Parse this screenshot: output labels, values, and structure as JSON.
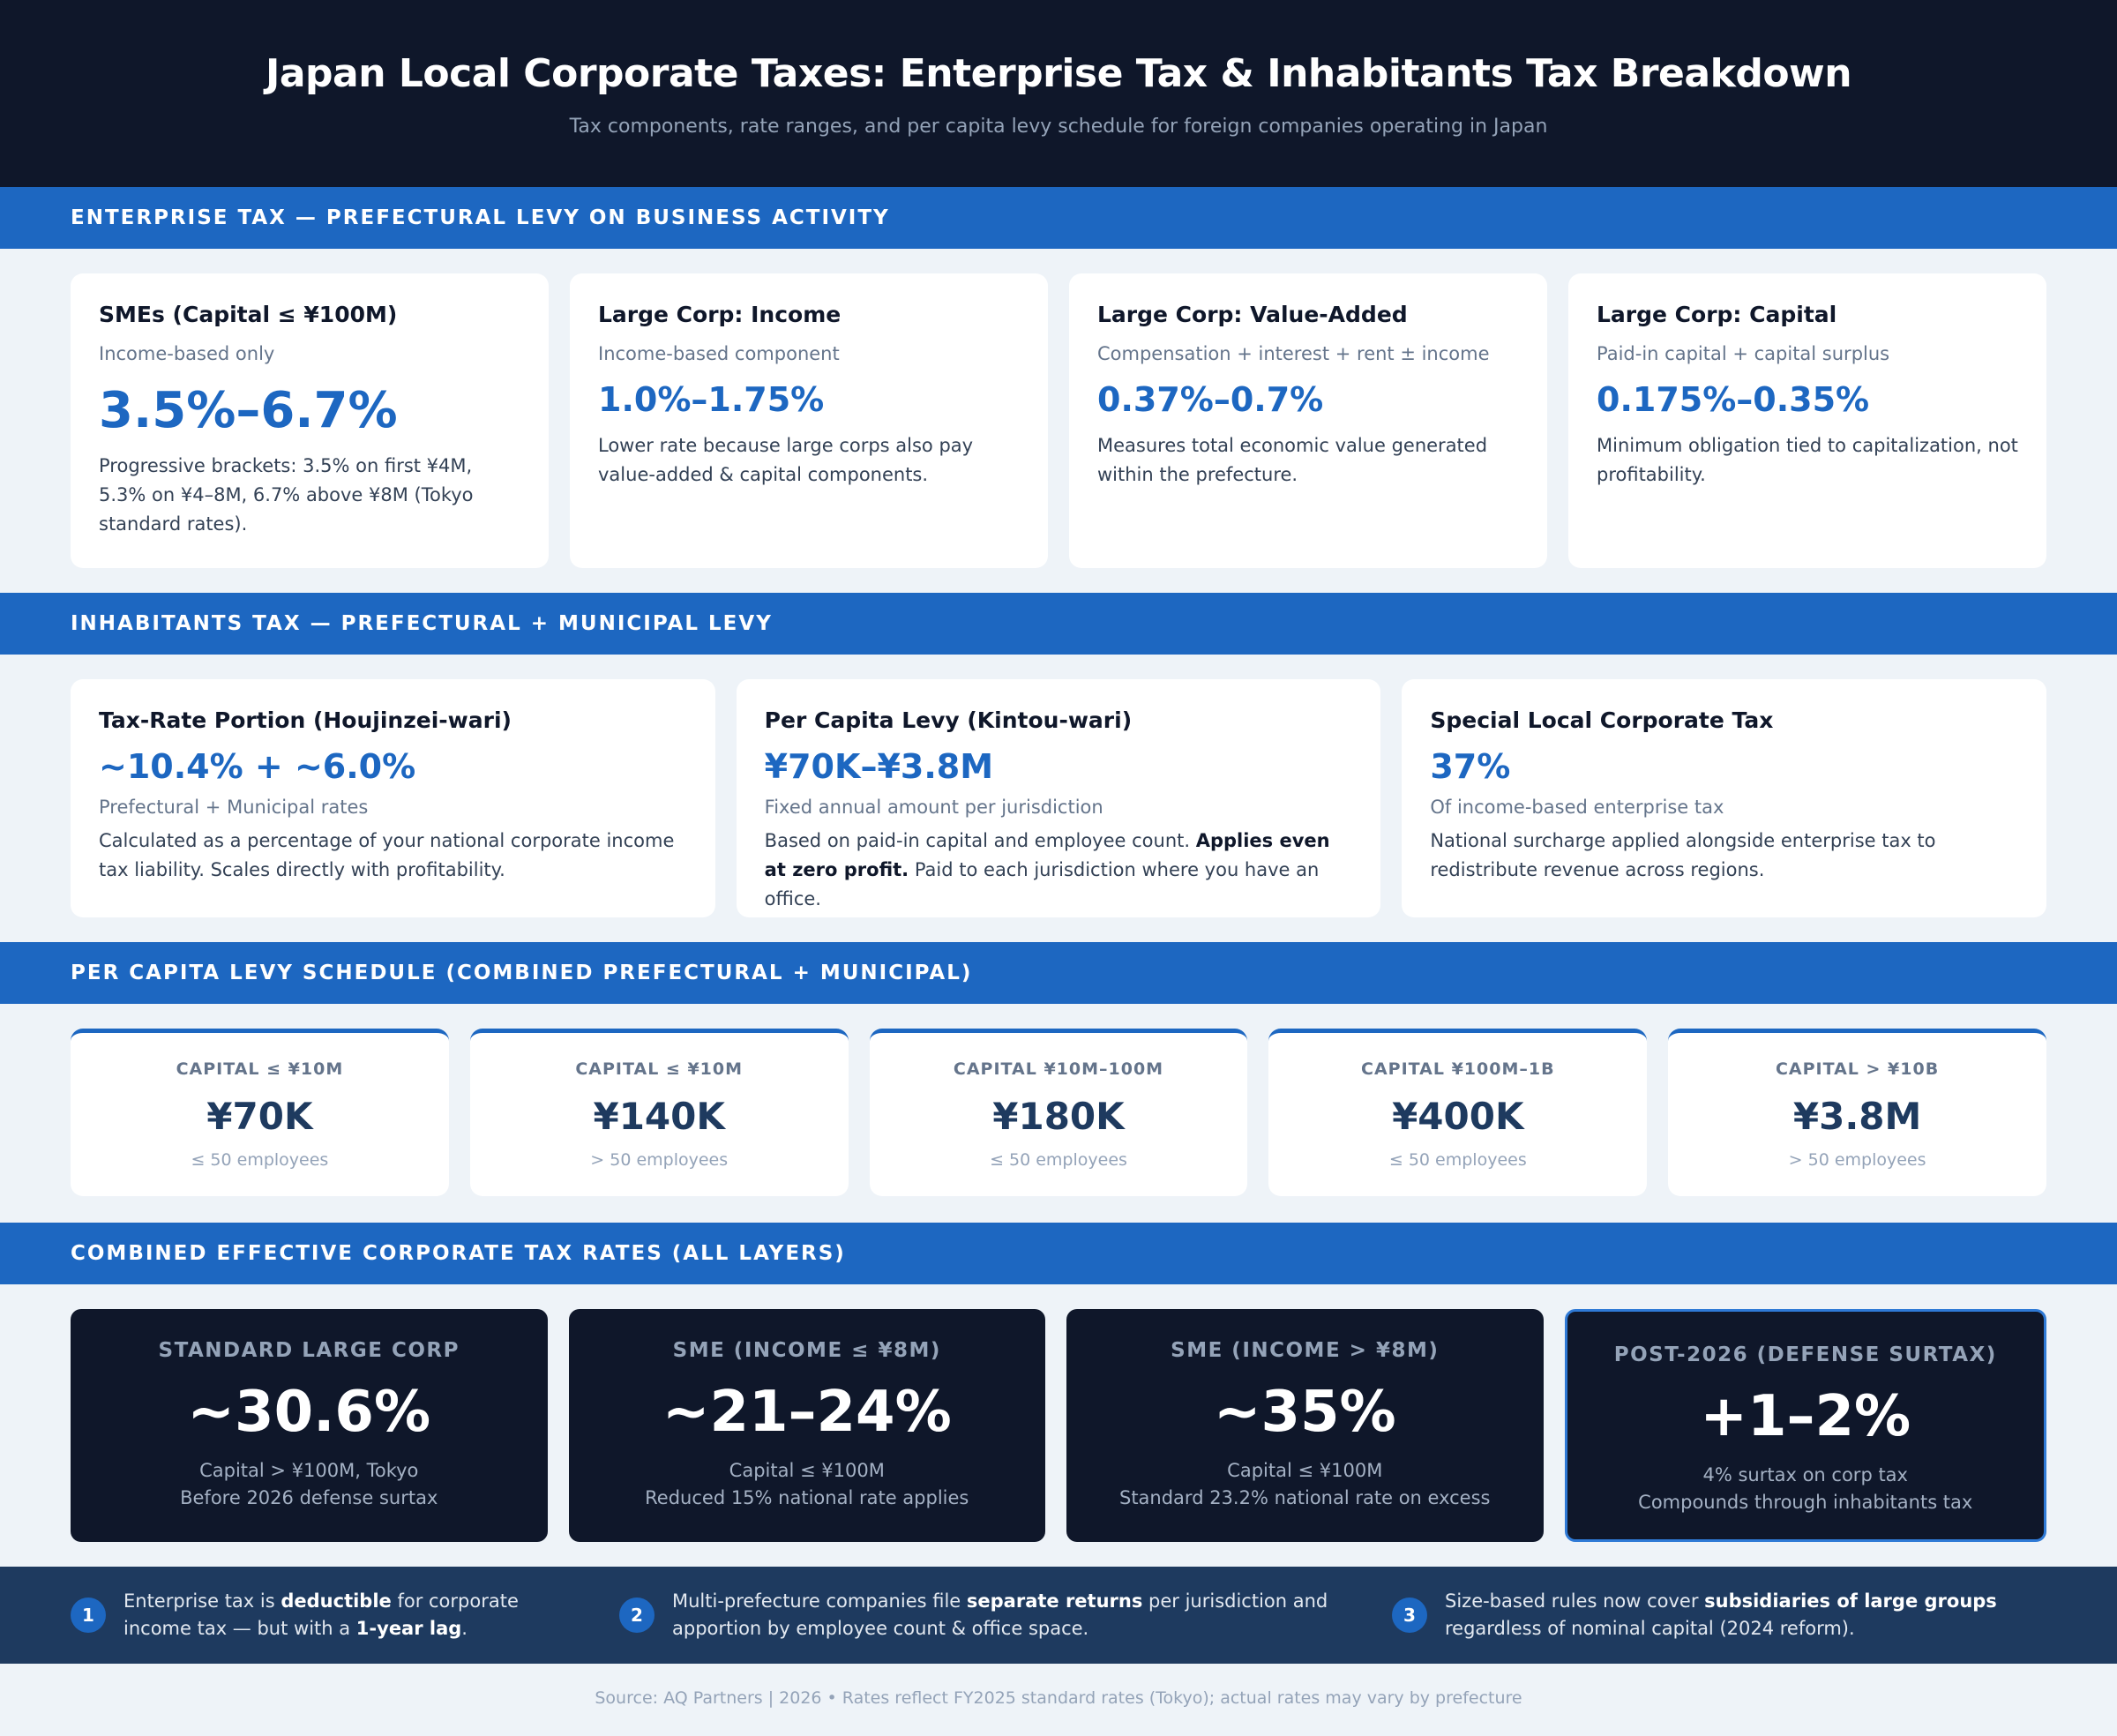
{
  "header": {
    "title": "Japan Local Corporate Taxes: Enterprise Tax & Inhabitants Tax Breakdown",
    "subtitle": "Tax components, rate ranges, and per capita levy schedule for foreign companies operating in Japan"
  },
  "enterprise": {
    "band": "Enterprise Tax — Prefectural Levy on Business Activity",
    "cards": [
      {
        "title": "SMEs (Capital ≤ ¥100M)",
        "sub": "Income-based only",
        "rate": "3.5%–6.7%",
        "desc": "Progressive brackets: 3.5% on first ¥4M, 5.3% on ¥4–8M, 6.7% above ¥8M (Tokyo standard rates)."
      },
      {
        "title": "Large Corp: Income",
        "sub": "Income-based component",
        "rate": "1.0%–1.75%",
        "desc": "Lower rate because large corps also pay value-added & capital components."
      },
      {
        "title": "Large Corp: Value-Added",
        "sub": "Compensation + interest + rent ± income",
        "rate": "0.37%–0.7%",
        "desc": "Measures total economic value generated within the prefecture."
      },
      {
        "title": "Large Corp: Capital",
        "sub": "Paid-in capital + capital surplus",
        "rate": "0.175%–0.35%",
        "desc": "Minimum obligation tied to capitalization, not profitability."
      }
    ]
  },
  "inhabitants": {
    "band": "Inhabitants Tax — Prefectural + Municipal Levy",
    "cards": [
      {
        "title": "Tax-Rate Portion (Houjinzei-wari)",
        "rate": "~10.4% + ~6.0%",
        "sub": "Prefectural + Municipal rates",
        "desc": "Calculated as a percentage of your national corporate income tax liability. Scales directly with profitability."
      },
      {
        "title": "Per Capita Levy (Kintou-wari)",
        "rate": "¥70K–¥3.8M",
        "sub": "Fixed annual amount per jurisdiction",
        "desc_a": "Based on paid-in capital and employee count. ",
        "desc_b": "Applies even at zero profit.",
        "desc_c": " Paid to each jurisdiction where you have an office."
      },
      {
        "title": "Special Local Corporate Tax",
        "rate": "37%",
        "sub": "Of income-based enterprise tax",
        "desc": "National surcharge applied alongside enterprise tax to redistribute revenue across regions."
      }
    ]
  },
  "levy": {
    "band": "Per Capita Levy Schedule (Combined Prefectural + Municipal)",
    "items": [
      {
        "cap": "Capital ≤ ¥10M",
        "amt": "¥70K",
        "emp": "≤ 50 employees"
      },
      {
        "cap": "Capital ≤ ¥10M",
        "amt": "¥140K",
        "emp": "> 50 employees"
      },
      {
        "cap": "Capital ¥10M–100M",
        "amt": "¥180K",
        "emp": "≤ 50 employees"
      },
      {
        "cap": "Capital ¥100M–1B",
        "amt": "¥400K",
        "emp": "≤ 50 employees"
      },
      {
        "cap": "Capital > ¥10B",
        "amt": "¥3.8M",
        "emp": "> 50 employees"
      }
    ]
  },
  "combined": {
    "band": "Combined Effective Corporate Tax Rates (All Layers)",
    "items": [
      {
        "label": "Standard Large Corp",
        "value": "~30.6%",
        "note1": "Capital > ¥100M, Tokyo",
        "note2": "Before 2026 defense surtax"
      },
      {
        "label": "SME (Income ≤ ¥8M)",
        "value": "~21–24%",
        "note1": "Capital ≤ ¥100M",
        "note2": "Reduced 15% national rate applies"
      },
      {
        "label": "SME (Income > ¥8M)",
        "value": "~35%",
        "note1": "Capital ≤ ¥100M",
        "note2": "Standard 23.2% national rate on excess"
      },
      {
        "label": "Post-2026 (Defense Surtax)",
        "value": "+1–2%",
        "note1": "4% surtax on corp tax",
        "note2": "Compounds through inhabitants tax"
      }
    ]
  },
  "notes": [
    {
      "num": "1",
      "a": "Enterprise tax is ",
      "b": "deductible",
      "c": " for corporate income tax — but with a ",
      "d": "1-year lag",
      "e": "."
    },
    {
      "num": "2",
      "a": "Multi-prefecture companies file ",
      "b": "separate returns",
      "c": " per jurisdiction and apportion by employee count & office space."
    },
    {
      "num": "3",
      "a": "Size-based rules now cover ",
      "b": "subsidiaries of large groups",
      "c": " regardless of nominal capital (2024 reform)."
    }
  ],
  "source": "Source: AQ Partners | 2026 • Rates reflect FY2025 standard rates (Tokyo); actual rates may vary by prefecture",
  "colors": {
    "navy": "#0f172a",
    "accent": "#1d67c1",
    "footer": "#1e3a5f",
    "page": "#eef3f8"
  }
}
